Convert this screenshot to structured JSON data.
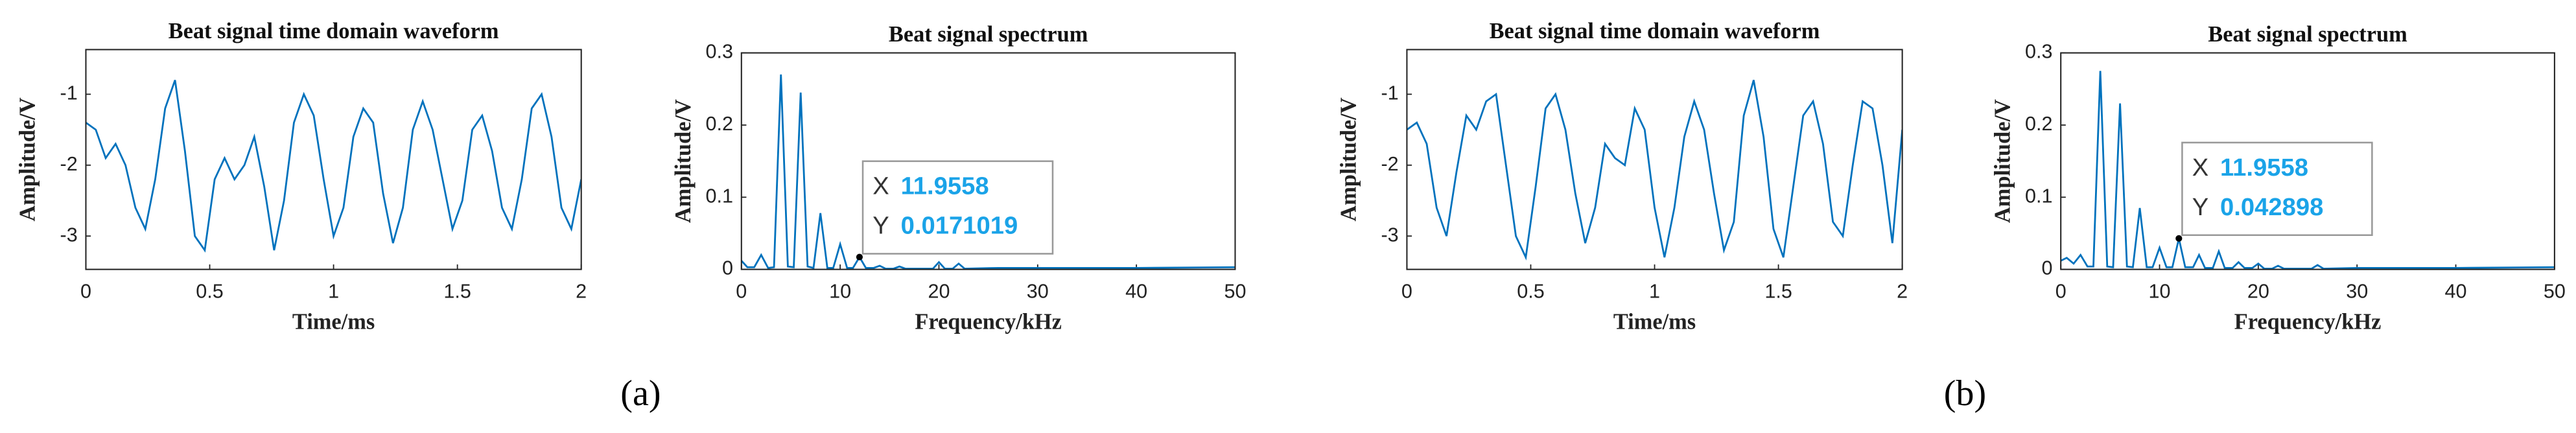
{
  "chart_data": [
    {
      "type": "line",
      "title": "Beat signal time domain waveform",
      "xlabel": "Time/ms",
      "ylabel": "Amplitude/V",
      "color": "#0072bd",
      "xlim": [
        0,
        2
      ],
      "xticks": [
        0,
        0.5,
        1,
        1.5,
        2
      ],
      "ylim": [
        -3.47,
        -0.37
      ],
      "yticks": [
        -3,
        -2,
        -1
      ],
      "x": [
        0,
        0.04,
        0.08,
        0.12,
        0.16,
        0.2,
        0.24,
        0.28,
        0.32,
        0.36,
        0.4,
        0.44,
        0.48,
        0.52,
        0.56,
        0.6,
        0.64,
        0.68,
        0.72,
        0.76,
        0.8,
        0.84,
        0.88,
        0.92,
        0.96,
        1.0,
        1.04,
        1.08,
        1.12,
        1.16,
        1.2,
        1.24,
        1.28,
        1.32,
        1.36,
        1.4,
        1.44,
        1.48,
        1.52,
        1.56,
        1.6,
        1.64,
        1.68,
        1.72,
        1.76,
        1.8,
        1.84,
        1.88,
        1.92,
        1.96,
        2.0
      ],
      "values": [
        -1.4,
        -1.5,
        -1.9,
        -1.7,
        -2.0,
        -2.6,
        -2.9,
        -2.2,
        -1.2,
        -0.8,
        -1.8,
        -3.0,
        -3.2,
        -2.2,
        -1.9,
        -2.2,
        -2.0,
        -1.6,
        -2.3,
        -3.2,
        -2.5,
        -1.4,
        -1.0,
        -1.3,
        -2.2,
        -3.0,
        -2.6,
        -1.6,
        -1.2,
        -1.4,
        -2.4,
        -3.1,
        -2.6,
        -1.5,
        -1.1,
        -1.5,
        -2.2,
        -2.9,
        -2.5,
        -1.5,
        -1.3,
        -1.8,
        -2.6,
        -2.9,
        -2.2,
        -1.2,
        -1.0,
        -1.6,
        -2.6,
        -2.9,
        -2.2
      ]
    },
    {
      "type": "line",
      "title": "Beat signal spectrum",
      "xlabel": "Frequency/kHz",
      "ylabel": "Amplitude/V",
      "color": "#0072bd",
      "xlim": [
        0,
        50
      ],
      "xticks": [
        0,
        10,
        20,
        30,
        40,
        50
      ],
      "ylim": [
        0,
        0.3
      ],
      "yticks": [
        0,
        0.1,
        0.2,
        0.3
      ],
      "x": [
        0,
        0.6,
        1.3,
        2,
        2.7,
        3.3,
        4,
        4.7,
        5.3,
        6,
        6.7,
        7.3,
        8,
        8.7,
        9.3,
        10,
        10.7,
        11.3,
        11.9558,
        12.6,
        13.4,
        14,
        14.6,
        15.4,
        16,
        16.6,
        19.4,
        20,
        20.6,
        21.4,
        22,
        22.6,
        26,
        30,
        40,
        50
      ],
      "values": [
        0.012,
        0.003,
        0.003,
        0.02,
        0.002,
        0.003,
        0.27,
        0.004,
        0.003,
        0.245,
        0.004,
        0.002,
        0.078,
        0.002,
        0.002,
        0.035,
        0.002,
        0.002,
        0.0171019,
        0.002,
        0.002,
        0.005,
        0.001,
        0.001,
        0.004,
        0.001,
        0.001,
        0.01,
        0.001,
        0.001,
        0.008,
        0.001,
        0.002,
        0.002,
        0.002,
        0.003
      ],
      "datatip": {
        "x_label": "X",
        "y_label": "Y",
        "x": 11.9558,
        "y": 0.0171019
      }
    },
    {
      "type": "line",
      "title": "Beat signal time domain waveform",
      "xlabel": "Time/ms",
      "ylabel": "Amplitude/V",
      "color": "#0072bd",
      "xlim": [
        0,
        2
      ],
      "xticks": [
        0,
        0.5,
        1,
        1.5,
        2
      ],
      "ylim": [
        -3.47,
        -0.37
      ],
      "yticks": [
        -3,
        -2,
        -1
      ],
      "x": [
        0,
        0.04,
        0.08,
        0.12,
        0.16,
        0.2,
        0.24,
        0.28,
        0.32,
        0.36,
        0.4,
        0.44,
        0.48,
        0.52,
        0.56,
        0.6,
        0.64,
        0.68,
        0.72,
        0.76,
        0.8,
        0.84,
        0.88,
        0.92,
        0.96,
        1.0,
        1.04,
        1.08,
        1.12,
        1.16,
        1.2,
        1.24,
        1.28,
        1.32,
        1.36,
        1.4,
        1.44,
        1.48,
        1.52,
        1.56,
        1.6,
        1.64,
        1.68,
        1.72,
        1.76,
        1.8,
        1.84,
        1.88,
        1.92,
        1.96,
        2.0
      ],
      "values": [
        -1.5,
        -1.4,
        -1.7,
        -2.6,
        -3.0,
        -2.1,
        -1.3,
        -1.5,
        -1.1,
        -1.0,
        -2.0,
        -3.0,
        -3.3,
        -2.3,
        -1.2,
        -1.0,
        -1.5,
        -2.4,
        -3.1,
        -2.6,
        -1.7,
        -1.9,
        -2.0,
        -1.2,
        -1.5,
        -2.6,
        -3.3,
        -2.6,
        -1.6,
        -1.1,
        -1.5,
        -2.4,
        -3.2,
        -2.8,
        -1.3,
        -0.8,
        -1.6,
        -2.9,
        -3.3,
        -2.3,
        -1.3,
        -1.1,
        -1.7,
        -2.8,
        -3.0,
        -2.0,
        -1.1,
        -1.2,
        -2.0,
        -3.1,
        -1.5
      ]
    },
    {
      "type": "line",
      "title": "Beat signal spectrum",
      "xlabel": "Frequency/kHz",
      "ylabel": "Amplitude/V",
      "color": "#0072bd",
      "xlim": [
        0,
        50
      ],
      "xticks": [
        0,
        10,
        20,
        30,
        40,
        50
      ],
      "ylim": [
        0,
        0.3
      ],
      "yticks": [
        0,
        0.1,
        0.2,
        0.3
      ],
      "x": [
        0,
        0.6,
        1.3,
        2,
        2.7,
        3.3,
        4,
        4.7,
        5.3,
        6,
        6.7,
        7.3,
        8,
        8.7,
        9.3,
        10,
        10.7,
        11.3,
        11.9558,
        12.6,
        13.4,
        14,
        14.6,
        15.4,
        16,
        16.6,
        17.4,
        18,
        18.6,
        19.4,
        20,
        20.6,
        21.4,
        22,
        22.6,
        25.4,
        26,
        26.6,
        30,
        40,
        50
      ],
      "values": [
        0.012,
        0.016,
        0.008,
        0.02,
        0.004,
        0.004,
        0.275,
        0.004,
        0.003,
        0.23,
        0.004,
        0.003,
        0.085,
        0.003,
        0.003,
        0.03,
        0.003,
        0.003,
        0.042898,
        0.003,
        0.003,
        0.02,
        0.002,
        0.002,
        0.025,
        0.002,
        0.002,
        0.01,
        0.002,
        0.002,
        0.008,
        0.001,
        0.001,
        0.005,
        0.001,
        0.001,
        0.006,
        0.001,
        0.002,
        0.002,
        0.003
      ],
      "datatip": {
        "x_label": "X",
        "y_label": "Y",
        "x": 11.9558,
        "y": 0.042898
      }
    }
  ],
  "panel_labels": [
    "(a)",
    "(b)"
  ]
}
